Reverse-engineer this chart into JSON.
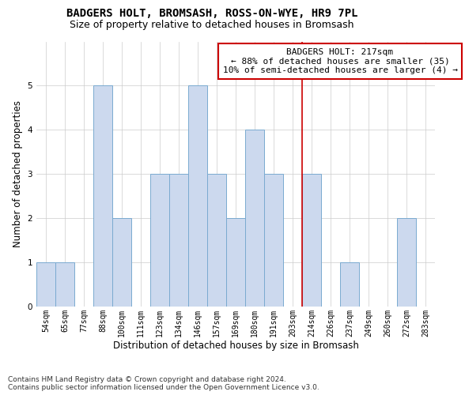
{
  "title": "BADGERS HOLT, BROMSASH, ROSS-ON-WYE, HR9 7PL",
  "subtitle": "Size of property relative to detached houses in Bromsash",
  "xlabel": "Distribution of detached houses by size in Bromsash",
  "ylabel": "Number of detached properties",
  "bar_labels": [
    "54sqm",
    "65sqm",
    "77sqm",
    "88sqm",
    "100sqm",
    "111sqm",
    "123sqm",
    "134sqm",
    "146sqm",
    "157sqm",
    "169sqm",
    "180sqm",
    "191sqm",
    "203sqm",
    "214sqm",
    "226sqm",
    "237sqm",
    "249sqm",
    "260sqm",
    "272sqm",
    "283sqm"
  ],
  "bar_values": [
    1,
    1,
    0,
    5,
    2,
    0,
    3,
    3,
    5,
    3,
    2,
    4,
    3,
    0,
    3,
    0,
    1,
    0,
    0,
    2,
    0
  ],
  "bar_color": "#ccd9ee",
  "bar_edge_color": "#7aaad0",
  "vline_x_index": 14,
  "vline_color": "#cc0000",
  "annotation_text": "BADGERS HOLT: 217sqm\n← 88% of detached houses are smaller (35)\n10% of semi-detached houses are larger (4) →",
  "annotation_box_edge_color": "#cc0000",
  "ylim": [
    0,
    6
  ],
  "yticks": [
    0,
    1,
    2,
    3,
    4,
    5
  ],
  "grid_color": "#cccccc",
  "footnote1": "Contains HM Land Registry data © Crown copyright and database right 2024.",
  "footnote2": "Contains public sector information licensed under the Open Government Licence v3.0.",
  "title_fontsize": 10,
  "subtitle_fontsize": 9,
  "axis_label_fontsize": 8.5,
  "tick_fontsize": 7,
  "annotation_fontsize": 8,
  "footnote_fontsize": 6.5
}
